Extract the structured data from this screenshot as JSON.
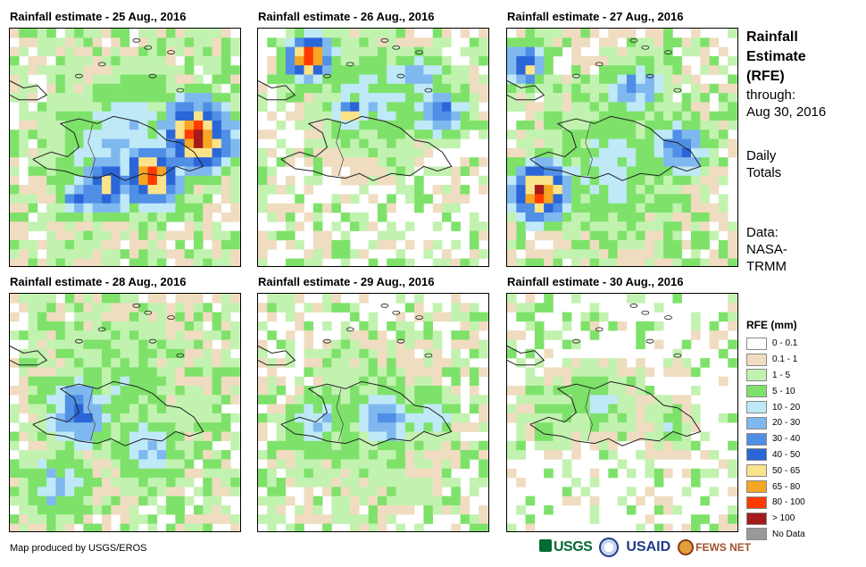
{
  "panels": [
    {
      "title": "Rainfall estimate - 25 Aug., 2016"
    },
    {
      "title": "Rainfall estimate - 26 Aug., 2016"
    },
    {
      "title": "Rainfall estimate - 27 Aug., 2016"
    },
    {
      "title": "Rainfall estimate - 28 Aug., 2016"
    },
    {
      "title": "Rainfall estimate - 29 Aug., 2016"
    },
    {
      "title": "Rainfall estimate - 30 Aug., 2016"
    }
  ],
  "side": {
    "title_line1": "Rainfall",
    "title_line2": "Estimate",
    "title_line3": "(RFE)",
    "through_label": "through:",
    "through_date": "Aug 30, 2016",
    "totals_line1": "Daily",
    "totals_line2": "Totals",
    "data_label": "Data:",
    "data_line1": "NASA-",
    "data_line2": "TRMM"
  },
  "legend": {
    "title": "RFE (mm)",
    "classes": [
      {
        "label": "0 - 0.1",
        "color": "#ffffff"
      },
      {
        "label": "0.1 - 1",
        "color": "#f0dcc0"
      },
      {
        "label": "1 - 5",
        "color": "#c2f2b0"
      },
      {
        "label": "5 - 10",
        "color": "#7ee26a"
      },
      {
        "label": "10 - 20",
        "color": "#bfe9f7"
      },
      {
        "label": "20 - 30",
        "color": "#7fb8ef"
      },
      {
        "label": "30 - 40",
        "color": "#4f8fe6"
      },
      {
        "label": "40 - 50",
        "color": "#2a66d8"
      },
      {
        "label": "50 - 65",
        "color": "#fbe38a"
      },
      {
        "label": "65 - 80",
        "color": "#f5a623"
      },
      {
        "label": "80 - 100",
        "color": "#ff3b00"
      },
      {
        "label": "> 100",
        "color": "#a31b1b"
      },
      {
        "label": "No Data",
        "color": "#999999"
      }
    ]
  },
  "footer": {
    "credit": "Map produced by USGS/EROS",
    "logos": [
      "USGS",
      "USAID",
      "FEWS NET"
    ]
  }
}
